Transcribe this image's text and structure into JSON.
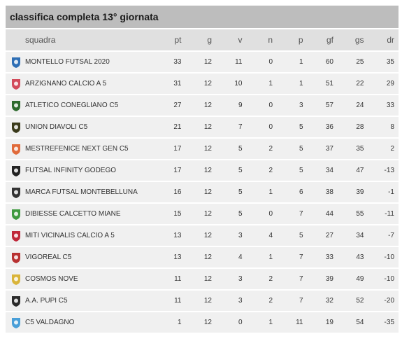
{
  "title": "classifica completa 13° giornata",
  "headers": [
    "squadra",
    "pt",
    "g",
    "v",
    "n",
    "p",
    "gf",
    "gs",
    "dr"
  ],
  "rows": [
    {
      "team": "MONTELLO FUTSAL 2020",
      "pt": "33",
      "g": "12",
      "v": "11",
      "n": "0",
      "p": "1",
      "gf": "60",
      "gs": "25",
      "dr": "35",
      "icon": "montello-logo-icon",
      "color": "#2f6fb5"
    },
    {
      "team": "ARZIGNANO CALCIO A 5",
      "pt": "31",
      "g": "12",
      "v": "10",
      "n": "1",
      "p": "1",
      "gf": "51",
      "gs": "22",
      "dr": "29",
      "icon": "arzignano-logo-icon",
      "color": "#d24b5b"
    },
    {
      "team": "ATLETICO CONEGLIANO C5",
      "pt": "27",
      "g": "12",
      "v": "9",
      "n": "0",
      "p": "3",
      "gf": "57",
      "gs": "24",
      "dr": "33",
      "icon": "conegliano-logo-icon",
      "color": "#2e6b2e"
    },
    {
      "team": "UNION DIAVOLI C5",
      "pt": "21",
      "g": "12",
      "v": "7",
      "n": "0",
      "p": "5",
      "gf": "36",
      "gs": "28",
      "dr": "8",
      "icon": "diavoli-logo-icon",
      "color": "#3a3a1a"
    },
    {
      "team": "MESTREFENICE NEXT GEN C5",
      "pt": "17",
      "g": "12",
      "v": "5",
      "n": "2",
      "p": "5",
      "gf": "37",
      "gs": "35",
      "dr": "2",
      "icon": "mestrefenice-logo-icon",
      "color": "#e06a3a"
    },
    {
      "team": "FUTSAL INFINITY GODEGO",
      "pt": "17",
      "g": "12",
      "v": "5",
      "n": "2",
      "p": "5",
      "gf": "34",
      "gs": "47",
      "dr": "-13",
      "icon": "infinity-logo-icon",
      "color": "#222222"
    },
    {
      "team": "MARCA FUTSAL MONTEBELLUNA",
      "pt": "16",
      "g": "12",
      "v": "5",
      "n": "1",
      "p": "6",
      "gf": "38",
      "gs": "39",
      "dr": "-1",
      "icon": "marca-logo-icon",
      "color": "#333333"
    },
    {
      "team": "DIBIESSE CALCETTO MIANE",
      "pt": "15",
      "g": "12",
      "v": "5",
      "n": "0",
      "p": "7",
      "gf": "44",
      "gs": "55",
      "dr": "-11",
      "icon": "dibiesse-logo-icon",
      "color": "#3f9a3f"
    },
    {
      "team": "MITI VICINALIS CALCIO A 5",
      "pt": "13",
      "g": "12",
      "v": "3",
      "n": "4",
      "p": "5",
      "gf": "27",
      "gs": "34",
      "dr": "-7",
      "icon": "miti-logo-icon",
      "color": "#c0283a"
    },
    {
      "team": "VIGOREAL C5",
      "pt": "13",
      "g": "12",
      "v": "4",
      "n": "1",
      "p": "7",
      "gf": "33",
      "gs": "43",
      "dr": "-10",
      "icon": "vigoreal-logo-icon",
      "color": "#b83232"
    },
    {
      "team": "COSMOS NOVE",
      "pt": "11",
      "g": "12",
      "v": "3",
      "n": "2",
      "p": "7",
      "gf": "39",
      "gs": "49",
      "dr": "-10",
      "icon": "cosmos-logo-icon",
      "color": "#d9b43a"
    },
    {
      "team": "A.A. PUPI C5",
      "pt": "11",
      "g": "12",
      "v": "3",
      "n": "2",
      "p": "7",
      "gf": "32",
      "gs": "52",
      "dr": "-20",
      "icon": "pupi-logo-icon",
      "color": "#2a2a2a"
    },
    {
      "team": "C5 VALDAGNO",
      "pt": "1",
      "g": "12",
      "v": "0",
      "n": "1",
      "p": "11",
      "gf": "19",
      "gs": "54",
      "dr": "-35",
      "icon": "valdagno-logo-icon",
      "color": "#4a9fd8"
    }
  ]
}
